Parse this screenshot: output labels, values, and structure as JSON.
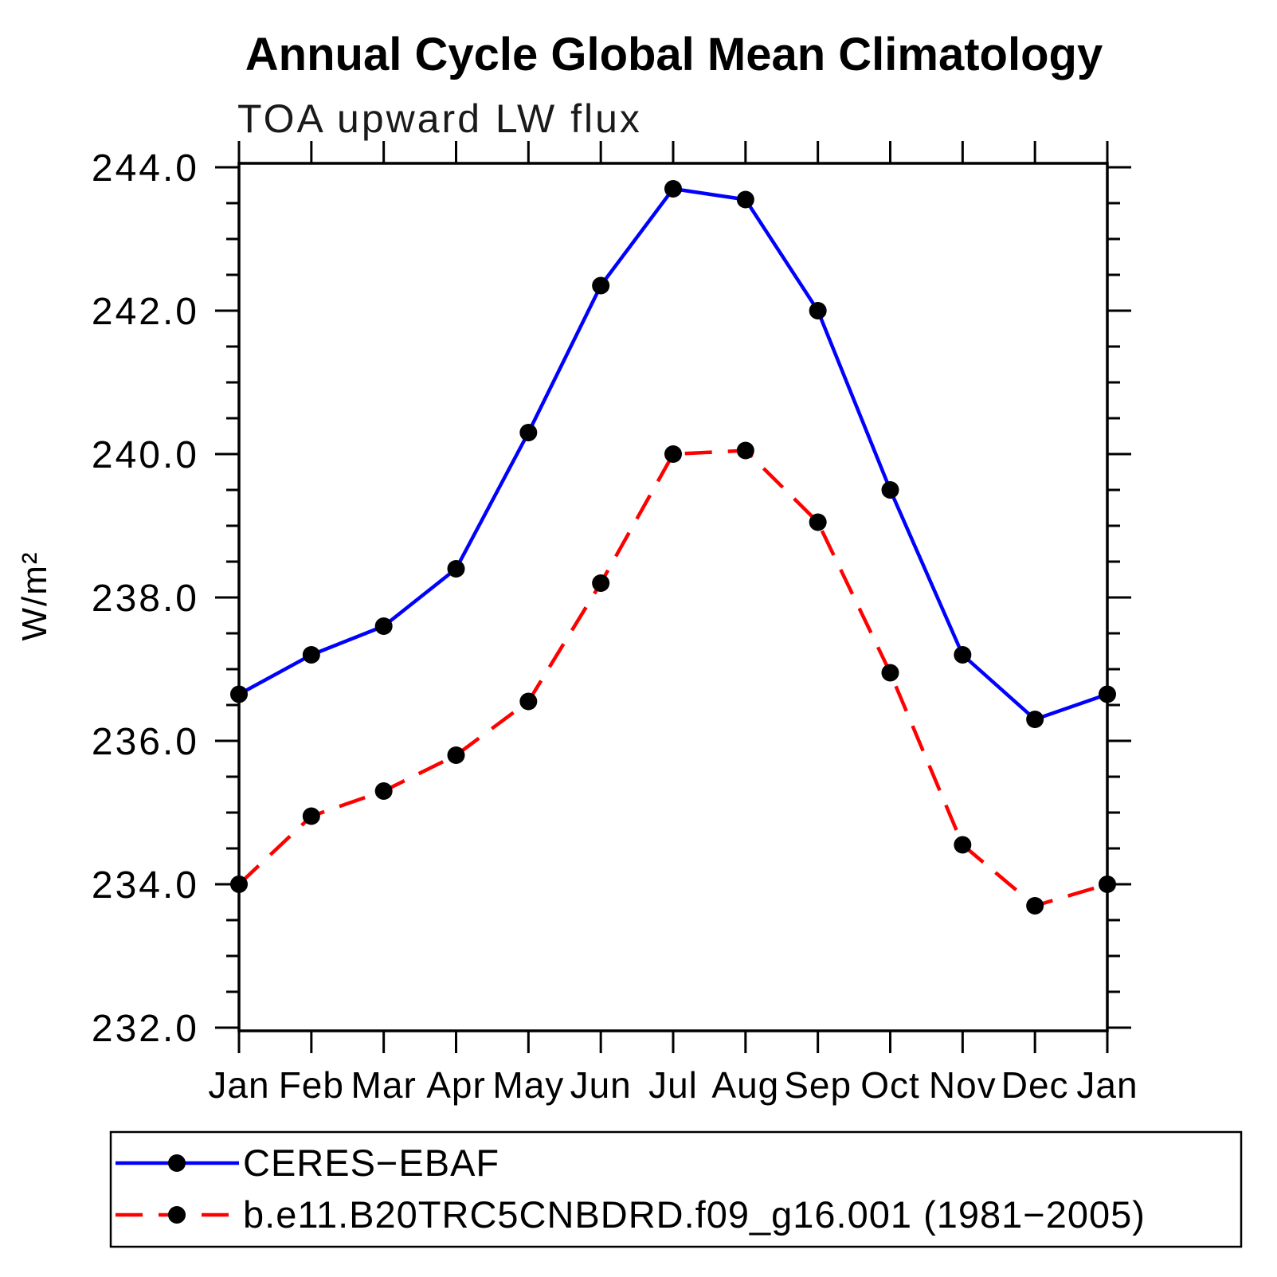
{
  "chart_data": {
    "type": "line",
    "title": "Annual Cycle Global Mean Climatology",
    "subtitle": "TOA upward LW flux",
    "ylabel": "W/m²",
    "xlabel": "",
    "categories": [
      "Jan",
      "Feb",
      "Mar",
      "Apr",
      "May",
      "Jun",
      "Jul",
      "Aug",
      "Sep",
      "Oct",
      "Nov",
      "Dec",
      "Jan"
    ],
    "ylim": [
      232.0,
      244.0
    ],
    "ytick_major_step": 2.0,
    "ytick_minor_step": 0.5,
    "ytick_labels": [
      "244.0",
      "242.0",
      "240.0",
      "238.0",
      "236.0",
      "234.0",
      "232.0"
    ],
    "grid": false,
    "legend_position": "bottom-left",
    "frame_color": "#000000",
    "series": [
      {
        "name": "CERES−EBAF",
        "color": "#0000ff",
        "line_style": "solid",
        "marker": "circle",
        "marker_color": "#000000",
        "values": [
          236.65,
          237.2,
          237.6,
          238.4,
          240.3,
          242.35,
          243.7,
          243.55,
          242.0,
          239.5,
          237.2,
          236.3,
          236.65
        ]
      },
      {
        "name": "b.e11.B20TRC5CNBDRD.f09_g16.001 (1981−2005)",
        "color": "#ff0000",
        "line_style": "dashed",
        "marker": "circle",
        "marker_color": "#000000",
        "values": [
          234.0,
          234.95,
          235.3,
          235.8,
          236.55,
          238.2,
          240.0,
          240.05,
          239.05,
          236.95,
          234.55,
          233.7,
          234.0
        ]
      }
    ]
  }
}
